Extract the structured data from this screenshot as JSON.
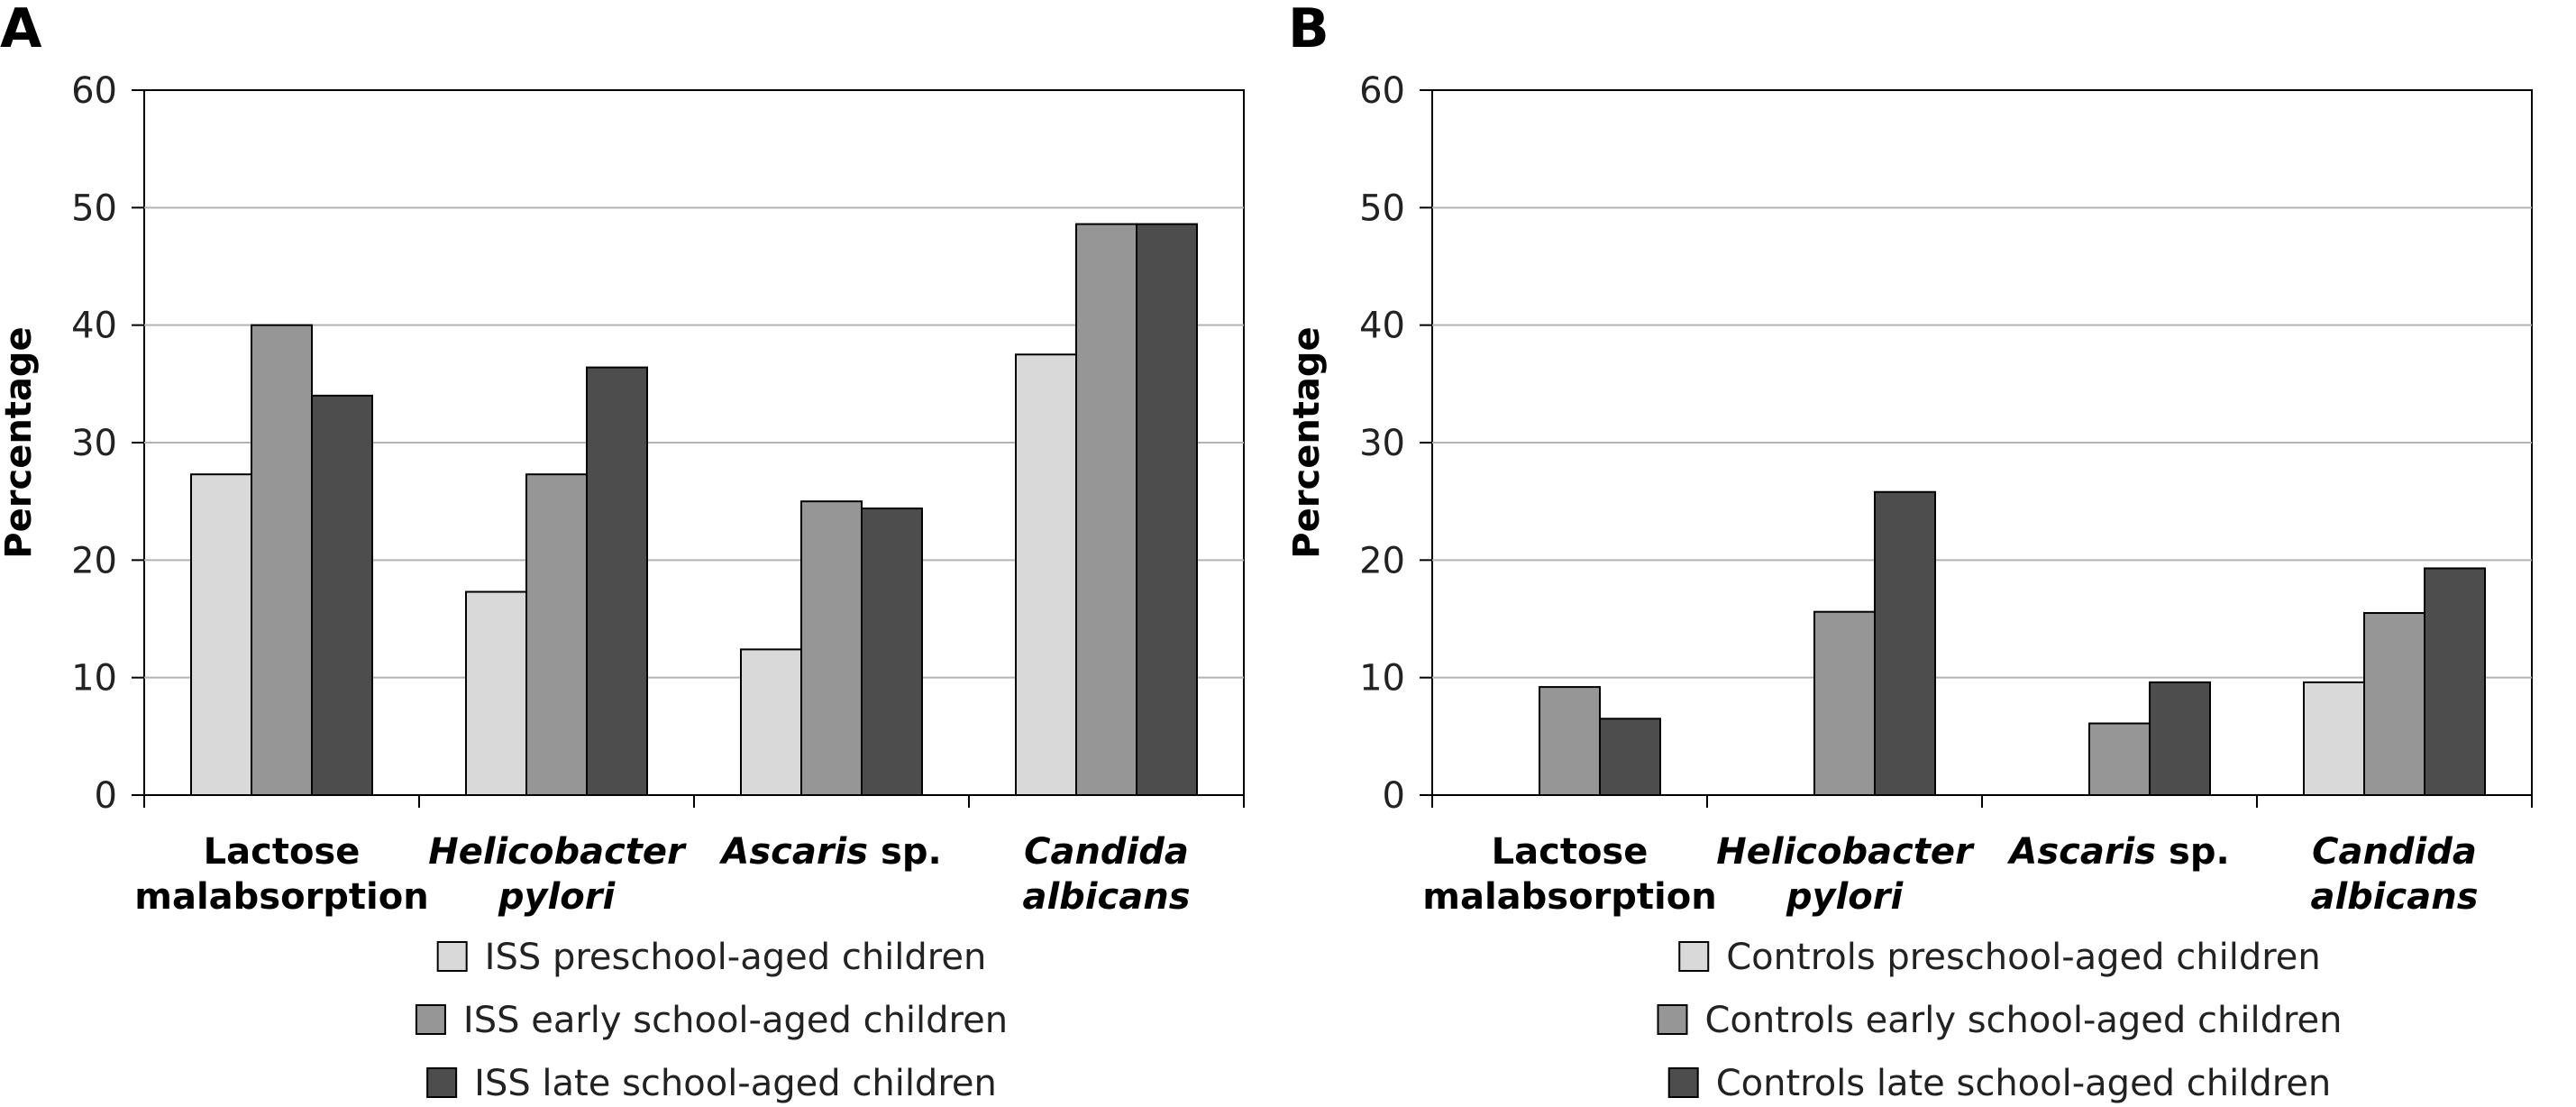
{
  "chart_data": [
    {
      "panel": "A",
      "type": "bar",
      "title": "",
      "xlabel": "",
      "ylabel": "Percentage",
      "ylim": [
        0,
        60
      ],
      "yticks": [
        0,
        10,
        20,
        30,
        40,
        50,
        60
      ],
      "grid": true,
      "legend_position": "bottom",
      "categories": [
        {
          "parts": [
            {
              "text": "Lactose",
              "italic": false
            }
          ],
          "parts2": [
            {
              "text": "malabsorption",
              "italic": false
            }
          ]
        },
        {
          "parts": [
            {
              "text": "Helicobacter",
              "italic": true
            }
          ],
          "parts2": [
            {
              "text": "pylori",
              "italic": true
            }
          ]
        },
        {
          "parts": [
            {
              "text": "Ascaris",
              "italic": true
            },
            {
              "text": " sp.",
              "italic": false
            }
          ],
          "parts2": []
        },
        {
          "parts": [
            {
              "text": "Candida",
              "italic": true
            }
          ],
          "parts2": [
            {
              "text": "albicans",
              "italic": true
            }
          ]
        }
      ],
      "series": [
        {
          "name": "ISS preschool-aged children",
          "color": "#d9d9d9",
          "values": [
            27.3,
            17.3,
            12.4,
            37.5
          ]
        },
        {
          "name": "ISS early school-aged children",
          "color": "#969696",
          "values": [
            40.0,
            27.3,
            25.0,
            48.6
          ]
        },
        {
          "name": "ISS late school-aged children",
          "color": "#4d4d4d",
          "values": [
            34.0,
            36.4,
            24.4,
            48.6
          ]
        }
      ]
    },
    {
      "panel": "B",
      "type": "bar",
      "title": "",
      "xlabel": "",
      "ylabel": "Percentage",
      "ylim": [
        0,
        60
      ],
      "yticks": [
        0,
        10,
        20,
        30,
        40,
        50,
        60
      ],
      "grid": true,
      "legend_position": "bottom",
      "categories": [
        {
          "parts": [
            {
              "text": "Lactose",
              "italic": false
            }
          ],
          "parts2": [
            {
              "text": "malabsorption",
              "italic": false
            }
          ]
        },
        {
          "parts": [
            {
              "text": "Helicobacter",
              "italic": true
            }
          ],
          "parts2": [
            {
              "text": "pylori",
              "italic": true
            }
          ]
        },
        {
          "parts": [
            {
              "text": "Ascaris",
              "italic": true
            },
            {
              "text": " sp.",
              "italic": false
            }
          ],
          "parts2": []
        },
        {
          "parts": [
            {
              "text": "Candida",
              "italic": true
            }
          ],
          "parts2": [
            {
              "text": "albicans",
              "italic": true
            }
          ]
        }
      ],
      "series": [
        {
          "name": "Controls preschool-aged children",
          "color": "#d9d9d9",
          "values": [
            0,
            0,
            0,
            9.6
          ]
        },
        {
          "name": "Controls early school-aged children",
          "color": "#969696",
          "values": [
            9.2,
            15.6,
            6.1,
            15.5
          ]
        },
        {
          "name": "Controls late school-aged children",
          "color": "#4d4d4d",
          "values": [
            6.5,
            25.8,
            9.6,
            19.3
          ]
        }
      ]
    }
  ]
}
